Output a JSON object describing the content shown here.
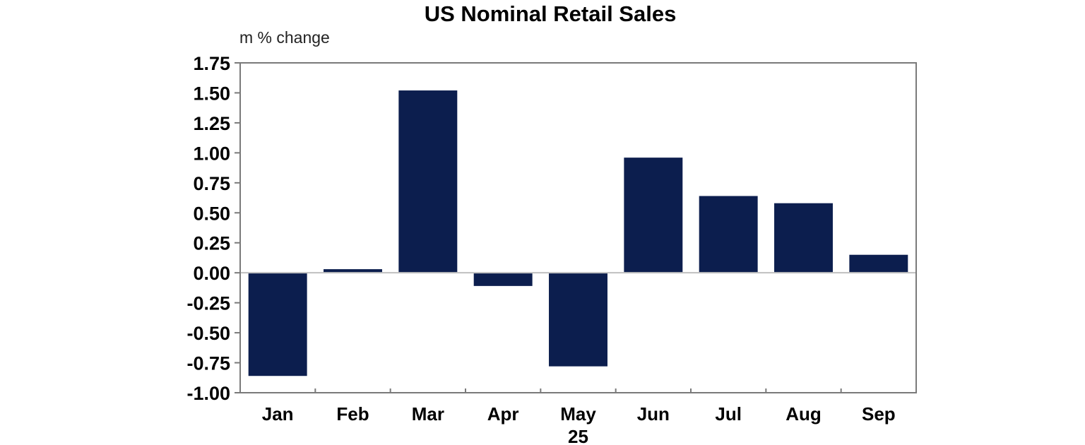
{
  "chart_data": {
    "type": "bar",
    "title": "US Nominal Retail Sales",
    "ylabel": "m % change",
    "xlabel": "",
    "year_label": "25",
    "year_label_under": "May",
    "categories": [
      "Jan",
      "Feb",
      "Mar",
      "Apr",
      "May",
      "Jun",
      "Jul",
      "Aug",
      "Sep"
    ],
    "values": [
      -0.86,
      0.03,
      1.52,
      -0.11,
      -0.78,
      0.96,
      0.64,
      0.58,
      0.15
    ],
    "ylim": [
      -1.0,
      1.75
    ],
    "yticks": [
      "1.75",
      "1.50",
      "1.25",
      "1.00",
      "0.75",
      "0.50",
      "0.25",
      "0.00",
      "-0.25",
      "-0.50",
      "-0.75",
      "-1.00"
    ],
    "ytick_values": [
      1.75,
      1.5,
      1.25,
      1.0,
      0.75,
      0.5,
      0.25,
      0.0,
      -0.25,
      -0.5,
      -0.75,
      -1.0
    ],
    "grid": false,
    "legend": null,
    "bar_color": "#0c1e4e",
    "zero_line_color": "#c0c0c0",
    "axis_color": "#7a7a7a"
  }
}
